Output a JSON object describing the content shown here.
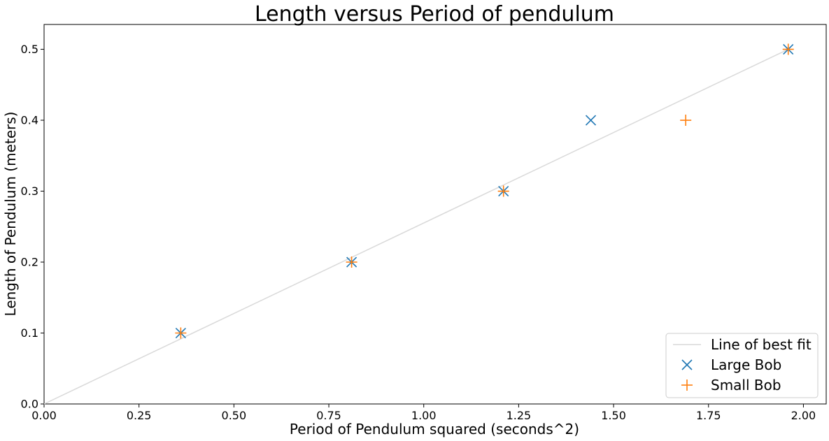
{
  "chart_data": {
    "type": "scatter",
    "title": "Length versus Period of pendulum",
    "xlabel": "Period of Pendulum squared (seconds^2)",
    "ylabel": "Length of Pendulum (meters)",
    "xlim": [
      0.0,
      2.06
    ],
    "ylim": [
      0.0,
      0.535
    ],
    "x_ticks": [
      "0.00",
      "0.25",
      "0.50",
      "0.75",
      "1.00",
      "1.25",
      "1.50",
      "1.75",
      "2.00"
    ],
    "y_ticks": [
      "0.0",
      "0.1",
      "0.2",
      "0.3",
      "0.4",
      "0.5"
    ],
    "grid": false,
    "legend_position": "lower-right",
    "series": [
      {
        "name": "Line of best fit",
        "kind": "line",
        "color": "#d9d9d9",
        "x": [
          0.0,
          1.96
        ],
        "y": [
          0.0,
          0.5
        ]
      },
      {
        "name": "Large Bob",
        "kind": "scatter",
        "marker": "x",
        "color": "#1f77b4",
        "x": [
          0.36,
          0.81,
          1.21,
          1.44,
          1.96
        ],
        "y": [
          0.1,
          0.2,
          0.3,
          0.4,
          0.5
        ]
      },
      {
        "name": "Small Bob",
        "kind": "scatter",
        "marker": "+",
        "color": "#ff7f0e",
        "x": [
          0.36,
          0.81,
          1.21,
          1.69,
          1.96
        ],
        "y": [
          0.1,
          0.2,
          0.3,
          0.4,
          0.5
        ]
      }
    ]
  }
}
